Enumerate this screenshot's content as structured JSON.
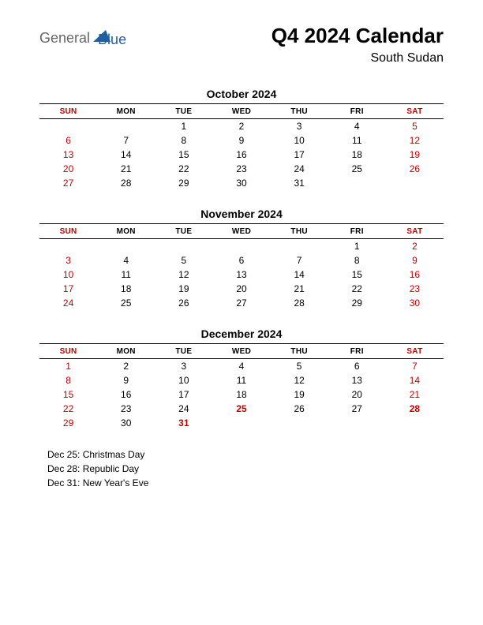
{
  "logo": {
    "word1": "General",
    "word2": "Blue"
  },
  "title": "Q4 2024 Calendar",
  "subtitle": "South Sudan",
  "day_headers": [
    "SUN",
    "MON",
    "TUE",
    "WED",
    "THU",
    "FRI",
    "SAT"
  ],
  "months": [
    {
      "title": "October 2024",
      "weeks": [
        [
          "",
          "",
          "1",
          "2",
          "3",
          "4",
          "5"
        ],
        [
          "6",
          "7",
          "8",
          "9",
          "10",
          "11",
          "12"
        ],
        [
          "13",
          "14",
          "15",
          "16",
          "17",
          "18",
          "19"
        ],
        [
          "20",
          "21",
          "22",
          "23",
          "24",
          "25",
          "26"
        ],
        [
          "27",
          "28",
          "29",
          "30",
          "31",
          "",
          ""
        ]
      ],
      "holidays_bold": []
    },
    {
      "title": "November 2024",
      "weeks": [
        [
          "",
          "",
          "",
          "",
          "",
          "1",
          "2"
        ],
        [
          "3",
          "4",
          "5",
          "6",
          "7",
          "8",
          "9"
        ],
        [
          "10",
          "11",
          "12",
          "13",
          "14",
          "15",
          "16"
        ],
        [
          "17",
          "18",
          "19",
          "20",
          "21",
          "22",
          "23"
        ],
        [
          "24",
          "25",
          "26",
          "27",
          "28",
          "29",
          "30"
        ]
      ],
      "holidays_bold": []
    },
    {
      "title": "December 2024",
      "weeks": [
        [
          "1",
          "2",
          "3",
          "4",
          "5",
          "6",
          "7"
        ],
        [
          "8",
          "9",
          "10",
          "11",
          "12",
          "13",
          "14"
        ],
        [
          "15",
          "16",
          "17",
          "18",
          "19",
          "20",
          "21"
        ],
        [
          "22",
          "23",
          "24",
          "25",
          "26",
          "27",
          "28"
        ],
        [
          "29",
          "30",
          "31",
          "",
          "",
          "",
          ""
        ]
      ],
      "holidays_bold": [
        "25",
        "28",
        "31"
      ]
    }
  ],
  "holiday_list": [
    "Dec 25: Christmas Day",
    "Dec 28: Republic Day",
    "Dec 31: New Year's Eve"
  ],
  "colors": {
    "weekend": "#c00000",
    "text": "#000000",
    "logo_gray": "#666666",
    "logo_blue": "#1f5f9e",
    "logo_shape": "#1f5f9e"
  }
}
